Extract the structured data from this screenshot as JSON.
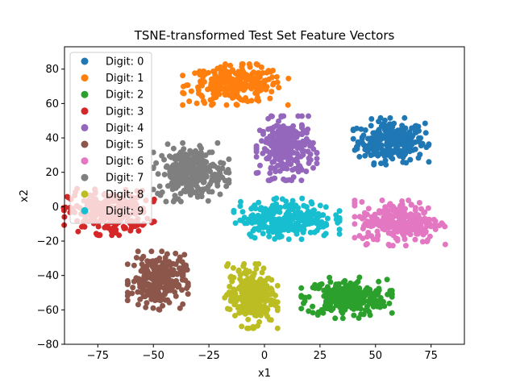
{
  "chart_data": {
    "type": "scatter",
    "title": "TSNE-transformed Test Set Feature Vectors",
    "xlabel": "x1",
    "ylabel": "x2",
    "xlim": [
      -90,
      90
    ],
    "ylim": [
      -80,
      93
    ],
    "xticks": [
      -75,
      -50,
      -25,
      0,
      25,
      50,
      75
    ],
    "yticks": [
      -80,
      -60,
      -40,
      -20,
      0,
      20,
      40,
      60,
      80
    ],
    "grid": false,
    "legend_position": "upper-left",
    "series": [
      {
        "name": "Digit: 0",
        "color": "#1f77b4",
        "center": [
          57,
          38
        ],
        "spread": [
          10,
          8
        ]
      },
      {
        "name": "Digit: 1",
        "color": "#ff7f0e",
        "center": [
          -13,
          71
        ],
        "spread": [
          14,
          7
        ]
      },
      {
        "name": "Digit: 2",
        "color": "#2ca02c",
        "center": [
          37,
          -53
        ],
        "spread": [
          12,
          7
        ]
      },
      {
        "name": "Digit: 3",
        "color": "#d62728",
        "center": [
          -70,
          -3
        ],
        "spread": [
          12,
          8
        ]
      },
      {
        "name": "Digit: 4",
        "color": "#9467bd",
        "center": [
          10,
          34
        ],
        "spread": [
          8,
          11
        ]
      },
      {
        "name": "Digit: 5",
        "color": "#8c564b",
        "center": [
          -48,
          -43
        ],
        "spread": [
          8,
          10
        ]
      },
      {
        "name": "Digit: 6",
        "color": "#e377c2",
        "center": [
          61,
          -9
        ],
        "spread": [
          12,
          8
        ]
      },
      {
        "name": "Digit: 7",
        "color": "#7f7f7f",
        "center": [
          -33,
          20
        ],
        "spread": [
          10,
          10
        ]
      },
      {
        "name": "Digit: 8",
        "color": "#bcbd22",
        "center": [
          -6,
          -52
        ],
        "spread": [
          7,
          11
        ]
      },
      {
        "name": "Digit: 9",
        "color": "#17becf",
        "center": [
          10,
          -7
        ],
        "spread": [
          14,
          7
        ]
      }
    ]
  }
}
